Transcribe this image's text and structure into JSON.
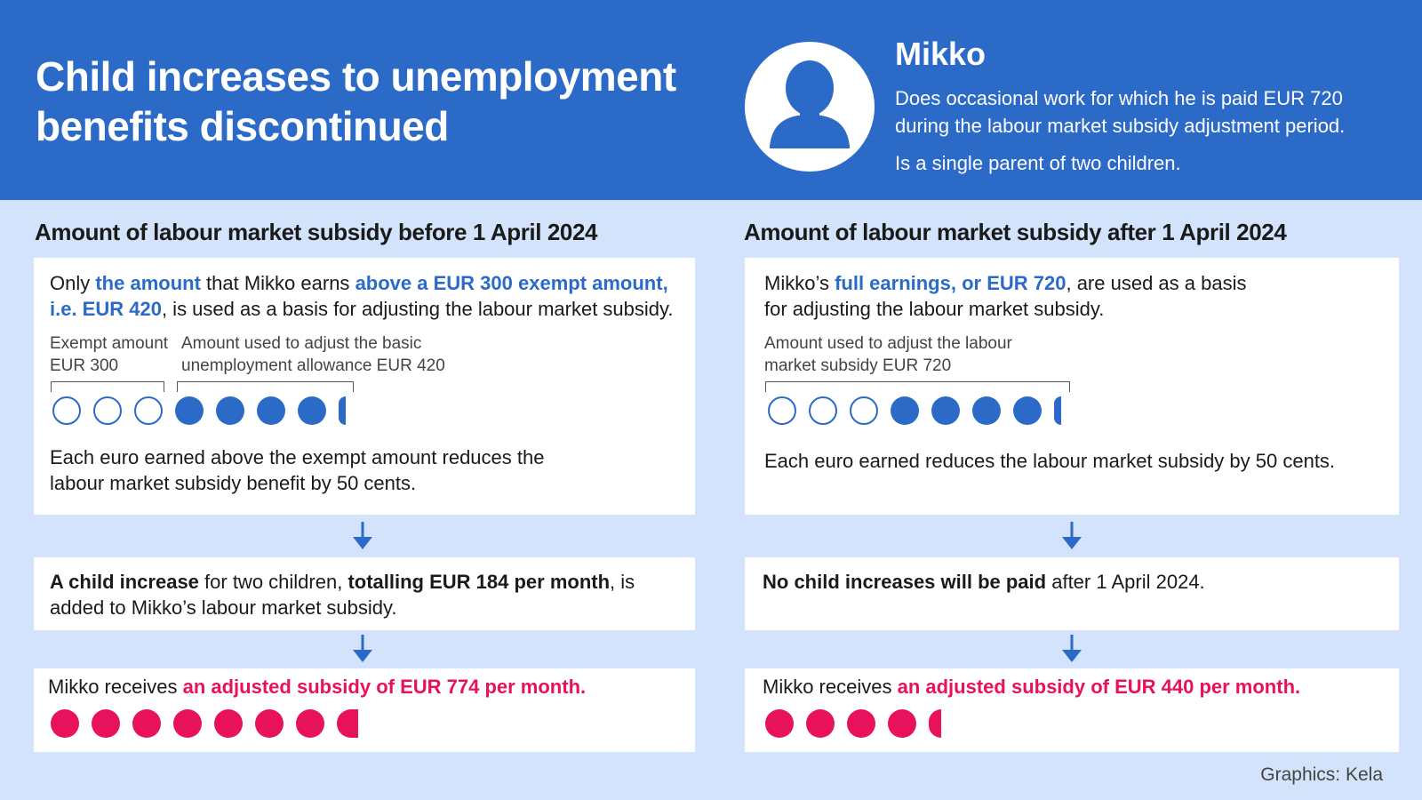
{
  "header": {
    "title": "Child increases to unemployment benefits discontinued",
    "person_name": "Mikko",
    "person_desc_1": "Does occasional work for which he is paid EUR 720 during the labour market subsidy adjustment period.",
    "person_desc_2": "Is a single parent of two children."
  },
  "before": {
    "heading": "Amount of labour market subsidy before 1 April 2024",
    "box1": {
      "t1": "Only ",
      "t2": "the amount",
      "t3": " that Mikko earns ",
      "t4": "above a EUR 300 exempt amount, i.e. EUR 420",
      "t5": ", is used as a basis for adjusting the labour market subsidy.",
      "label_exempt": "Exempt amount EUR 300",
      "label_adjust": "Amount used to adjust the basic unemployment allowance EUR 420",
      "note": "Each euro earned above the exempt amount reduces the labour market subsidy benefit by 50 cents."
    },
    "box2": {
      "t1": "A child increase",
      "t2": " for two children, ",
      "t3": "totalling EUR 184 per month",
      "t4": ", is added to Mikko’s labour market subsidy."
    },
    "box3": {
      "t1": "Mikko receives ",
      "t2": "an adjusted subsidy of EUR 774 per month."
    }
  },
  "after": {
    "heading": "Amount of labour market subsidy after 1 April 2024",
    "box1": {
      "t1": "Mikko’s ",
      "t2": "full earnings, or EUR 720",
      "t3": ", are used as a basis for adjusting the labour market subsidy.",
      "label_adjust": "Amount used to adjust the labour market subsidy EUR 720",
      "note": "Each euro earned reduces the labour market subsidy by 50 cents."
    },
    "box2": {
      "t1": "No child increases will be paid",
      "t2": " after 1 April 2024."
    },
    "box3": {
      "t1": "Mikko receives ",
      "t2": "an adjusted subsidy of EUR 440 per month."
    }
  },
  "credit": "Graphics: Kela",
  "colors": {
    "header_blue": "#2c6ac8",
    "accent_pink": "#e8115b",
    "background": "#d3e3fb"
  },
  "icons": {
    "avatar": "person-silhouette-icon",
    "arrow": "arrow-down-icon"
  }
}
